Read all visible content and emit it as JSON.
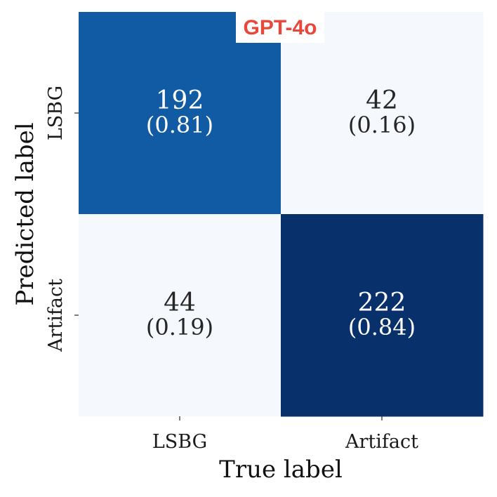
{
  "chart_data": {
    "type": "heatmap",
    "title": "",
    "badge": {
      "text": "GPT-4o",
      "color": "#e8473c"
    },
    "xlabel": "True label",
    "ylabel": "Predicted label",
    "x_categories": [
      "LSBG",
      "Artifact"
    ],
    "y_categories": [
      "LSBG",
      "Artifact"
    ],
    "cells": [
      {
        "row": 0,
        "col": 0,
        "value": 192,
        "fraction_label": "(0.81)",
        "color": "#105ba4"
      },
      {
        "row": 0,
        "col": 1,
        "value": 42,
        "fraction_label": "(0.16)",
        "color": "#f5f9fe"
      },
      {
        "row": 1,
        "col": 0,
        "value": 44,
        "fraction_label": "(0.19)",
        "color": "#f5f9fe"
      },
      {
        "row": 1,
        "col": 1,
        "value": 222,
        "fraction_label": "(0.84)",
        "color": "#08306b"
      }
    ],
    "colormap": "Blues",
    "colorbar": false,
    "grid": false,
    "text_colors": {
      "dark_cell": "#ffffff",
      "light_cell": "#262626"
    }
  }
}
